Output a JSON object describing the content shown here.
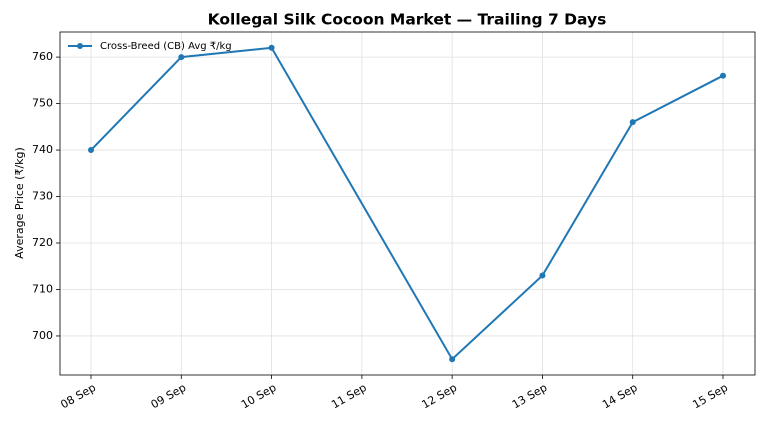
{
  "chart_data": {
    "type": "line",
    "title": "Kollegal Silk Cocoon Market — Trailing 7 Days",
    "y_label": "Average Price (₹/kg)",
    "x": [
      "08 Sep",
      "09 Sep",
      "10 Sep",
      "12 Sep",
      "13 Sep",
      "14 Sep",
      "15 Sep"
    ],
    "series": [
      {
        "name": "Cross-Breed (CB) Avg ₹/kg",
        "color": "#1f77b4",
        "values": [
          740,
          760,
          762,
          695,
          713,
          746,
          756
        ]
      }
    ],
    "xticks": [
      "08 Sep",
      "09 Sep",
      "10 Sep",
      "11 Sep",
      "12 Sep",
      "13 Sep",
      "14 Sep",
      "15 Sep"
    ],
    "ylim": [
      691.6,
      765.4
    ],
    "yticks": [
      700,
      710,
      720,
      730,
      740,
      750,
      760
    ],
    "grid": true,
    "legend": "upper-left"
  }
}
